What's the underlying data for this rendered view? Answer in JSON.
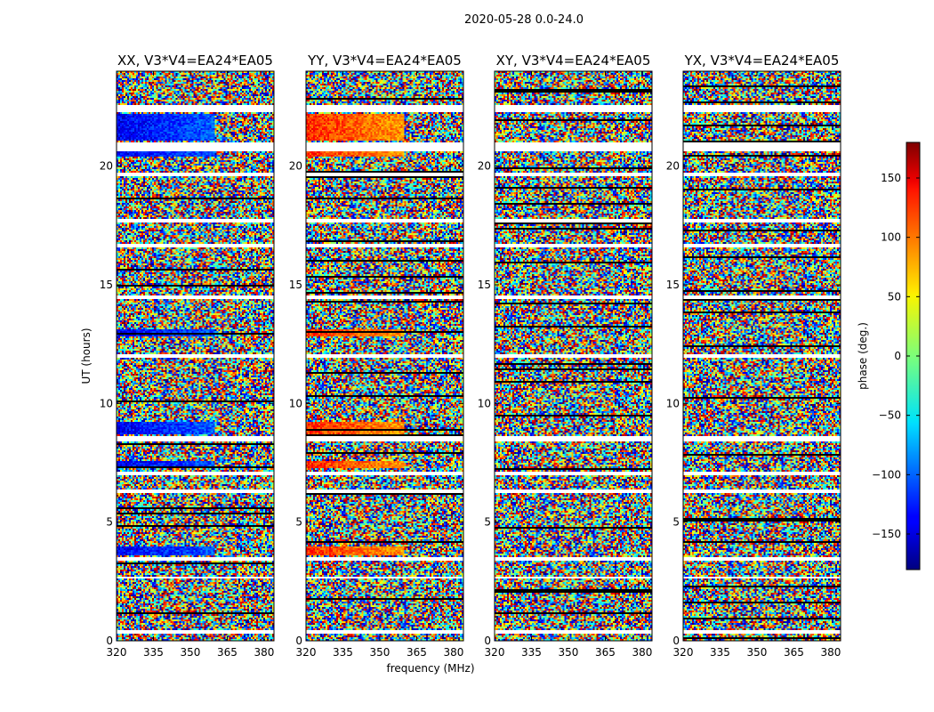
{
  "chart_data": {
    "type": "heatmap",
    "title": "2020-05-28 0.0-24.0",
    "xlabel": "frequency (MHz)",
    "ylabel": "UT (hours)",
    "xlim": [
      320,
      384
    ],
    "ylim": [
      0,
      24
    ],
    "xticks": [
      "320",
      "335",
      "350",
      "365",
      "380"
    ],
    "yticks": [
      "0",
      "5",
      "10",
      "15",
      "20"
    ],
    "colormap": "jet",
    "panels": [
      {
        "title": "XX, V3*V4=EA24*EA05",
        "coherent_phase": -140
      },
      {
        "title": "YY, V3*V4=EA24*EA05",
        "coherent_phase": 120
      },
      {
        "title": "XY, V3*V4=EA24*EA05",
        "coherent_phase": null
      },
      {
        "title": "YX, V3*V4=EA24*EA05",
        "coherent_phase": null
      }
    ],
    "colorbar": {
      "label": "phase (deg.)",
      "range": [
        -180,
        180
      ],
      "ticks": [
        "150",
        "100",
        "50",
        "0",
        "−50",
        "−100",
        "−150"
      ],
      "tick_values": [
        150,
        100,
        50,
        0,
        -50,
        -100,
        -150
      ]
    },
    "flagged_bands_ut": [
      [
        0.3,
        0.45
      ],
      [
        2.6,
        2.7
      ],
      [
        3.4,
        3.5
      ],
      [
        6.2,
        6.35
      ],
      [
        7.0,
        7.15
      ],
      [
        8.4,
        8.6
      ],
      [
        11.9,
        12.05
      ],
      [
        14.4,
        14.55
      ],
      [
        16.6,
        16.75
      ],
      [
        17.6,
        17.75
      ],
      [
        19.6,
        19.75
      ],
      [
        20.6,
        21.0
      ],
      [
        22.3,
        22.55
      ]
    ],
    "coherent_bands_ut": [
      [
        3.6,
        4.0
      ],
      [
        7.3,
        7.6
      ],
      [
        8.7,
        9.2
      ],
      [
        12.8,
        13.1
      ],
      [
        20.4,
        20.6
      ],
      [
        21.1,
        22.2
      ]
    ]
  }
}
